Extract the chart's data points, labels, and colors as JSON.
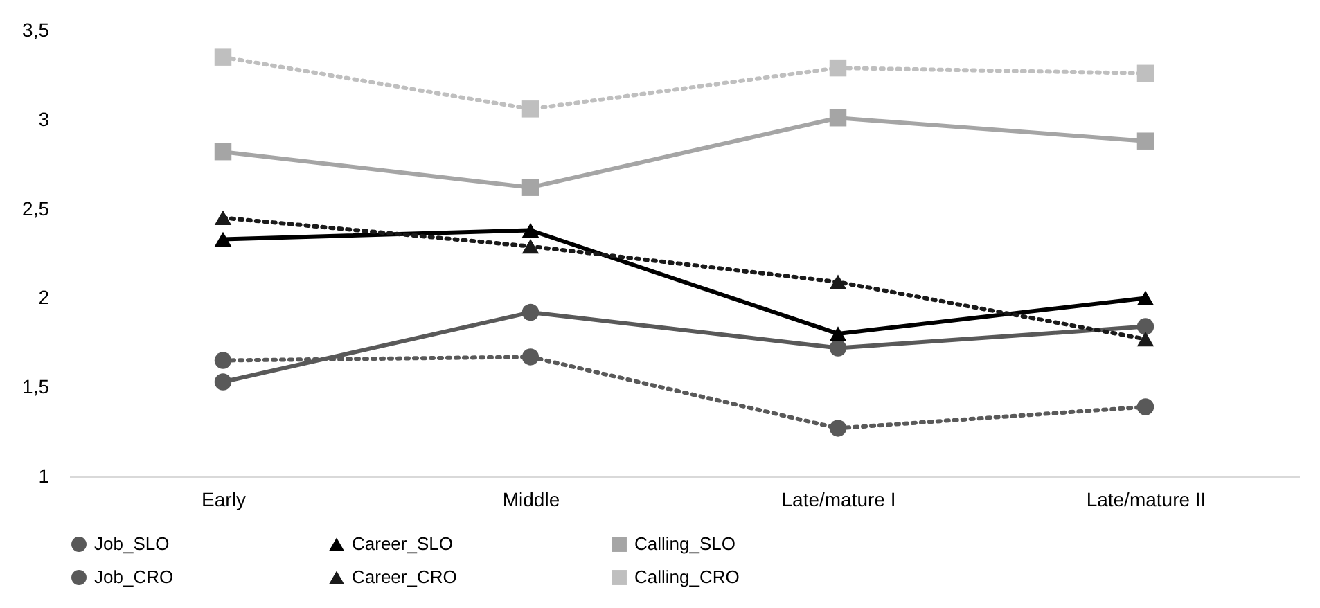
{
  "chart_data": {
    "type": "line",
    "categories": [
      "Early",
      "Middle",
      "Late/mature I",
      "Late/mature II"
    ],
    "series": [
      {
        "name": "Job_SLO",
        "color": "#595959",
        "line_style": "solid",
        "marker": "circle",
        "values": [
          1.53,
          1.92,
          1.72,
          1.84
        ]
      },
      {
        "name": "Career_SLO",
        "color": "#000000",
        "line_style": "solid",
        "marker": "triangle",
        "values": [
          2.33,
          2.38,
          1.8,
          2.0
        ]
      },
      {
        "name": "Calling_SLO",
        "color": "#a5a5a5",
        "line_style": "solid",
        "marker": "square",
        "values": [
          2.82,
          2.62,
          3.01,
          2.88
        ]
      },
      {
        "name": "Job_CRO",
        "color": "#595959",
        "line_style": "dotted",
        "marker": "circle",
        "values": [
          1.65,
          1.67,
          1.27,
          1.39
        ]
      },
      {
        "name": "Career_CRO",
        "color": "#1a1a1a",
        "line_style": "dotted",
        "marker": "triangle",
        "values": [
          2.45,
          2.29,
          2.09,
          1.77
        ]
      },
      {
        "name": "Calling_CRO",
        "color": "#bfbfbf",
        "line_style": "dotted",
        "marker": "square",
        "values": [
          3.35,
          3.06,
          3.29,
          3.26
        ]
      }
    ],
    "ylim": [
      1,
      3.5
    ],
    "yticks": [
      1,
      {
        "value": 1.5,
        "label": "1,5"
      },
      2,
      {
        "value": 2.5,
        "label": "2,5"
      },
      3,
      {
        "value": 3.5,
        "label": "3,5"
      }
    ],
    "grid": false,
    "legend": "bottom"
  }
}
